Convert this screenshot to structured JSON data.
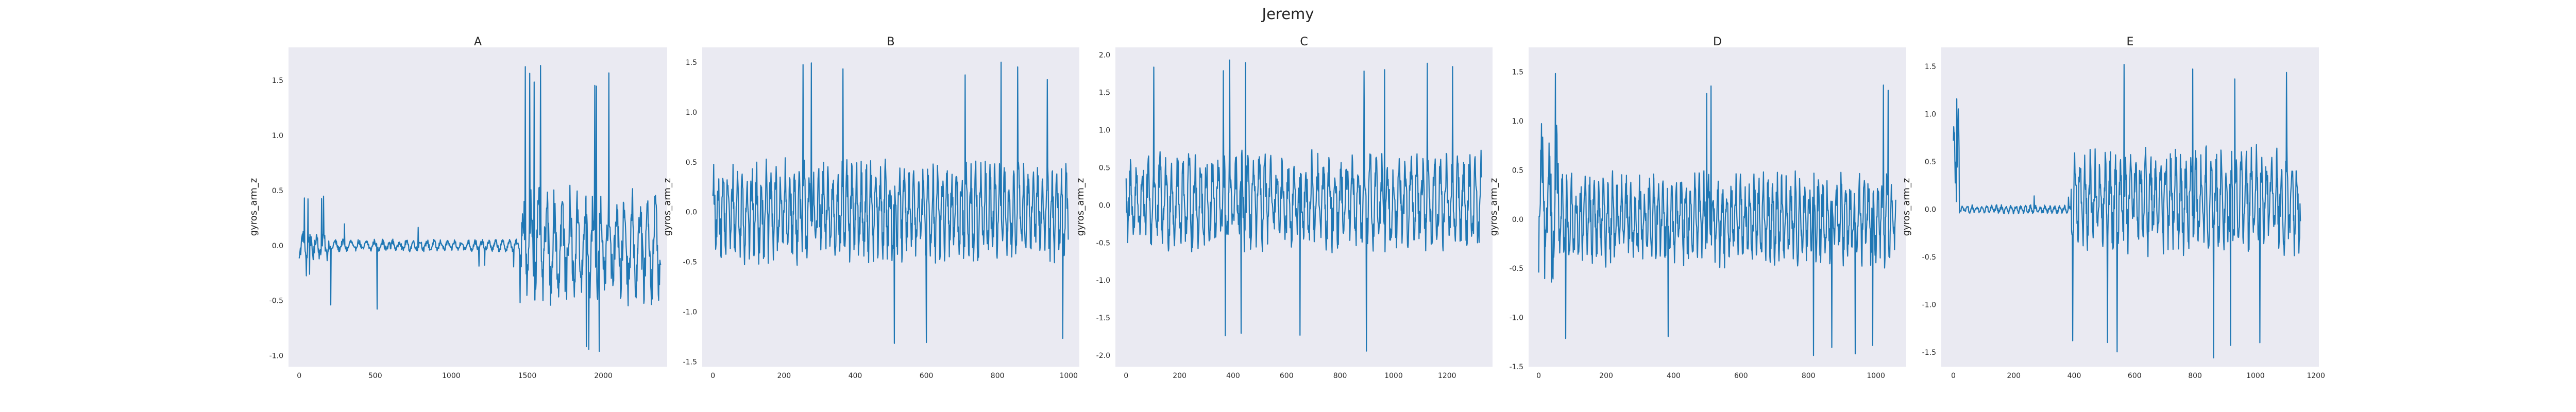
{
  "suptitle": "Jeremy",
  "colors": {
    "background": "#ffffff",
    "panel_face": "#eaeaf2",
    "line": "#1f77b4",
    "text": "#262626"
  },
  "chart_data": [
    {
      "type": "line",
      "title": "A",
      "xlabel": "",
      "ylabel": "gyros_arm_z",
      "x_length": 2380,
      "xlim": [
        -70,
        2420
      ],
      "ylim": [
        -1.1,
        1.8
      ],
      "xticks": [
        0,
        500,
        1000,
        1500,
        2000
      ],
      "yticks": [
        -1.0,
        -0.5,
        0.0,
        0.5,
        1.0,
        1.5
      ],
      "grid": false,
      "segments": [
        {
          "x_start": 0,
          "x_end": 200,
          "mean": 0.0,
          "amp": 0.15,
          "spike_max": 0.45,
          "spike_min": -0.3,
          "spikes": 6
        },
        {
          "x_start": 200,
          "x_end": 600,
          "mean": 0.0,
          "amp": 0.06,
          "spike_max": 0.2,
          "spike_min": -0.6,
          "spikes": 3
        },
        {
          "x_start": 600,
          "x_end": 1450,
          "mean": 0.0,
          "amp": 0.06,
          "spike_max": 0.18,
          "spike_min": -0.2,
          "spikes": 4
        },
        {
          "x_start": 1450,
          "x_end": 2380,
          "mean": 0.0,
          "amp": 0.55,
          "spike_max": 1.65,
          "spike_min": -1.05,
          "spikes": 10
        }
      ]
    },
    {
      "type": "line",
      "title": "B",
      "xlabel": "",
      "ylabel": "gyros_arm_z",
      "x_length": 1000,
      "xlim": [
        -30,
        1030
      ],
      "ylim": [
        -1.55,
        1.65
      ],
      "xticks": [
        0,
        200,
        400,
        600,
        800,
        1000
      ],
      "yticks": [
        -1.5,
        -1.0,
        -0.5,
        0.0,
        0.5,
        1.0,
        1.5
      ],
      "grid": false,
      "segments": [
        {
          "x_start": 0,
          "x_end": 1000,
          "mean": 0.0,
          "amp": 0.55,
          "spike_max": 1.55,
          "spike_min": -1.45,
          "spikes": 10
        }
      ]
    },
    {
      "type": "line",
      "title": "C",
      "xlabel": "",
      "ylabel": "gyros_arm_z",
      "x_length": 1330,
      "xlim": [
        -40,
        1370
      ],
      "ylim": [
        -2.15,
        2.1
      ],
      "xticks": [
        0,
        200,
        400,
        600,
        800,
        1000,
        1200
      ],
      "yticks": [
        -2.0,
        -1.5,
        -1.0,
        -0.5,
        0.0,
        0.5,
        1.0,
        1.5,
        2.0
      ],
      "grid": false,
      "segments": [
        {
          "x_start": 0,
          "x_end": 1330,
          "mean": 0.05,
          "amp": 0.7,
          "spike_max": 1.95,
          "spike_min": -1.95,
          "spikes": 12
        }
      ]
    },
    {
      "type": "line",
      "title": "D",
      "xlabel": "",
      "ylabel": "gyros_arm_z",
      "x_length": 1060,
      "xlim": [
        -30,
        1090
      ],
      "ylim": [
        -1.5,
        1.75
      ],
      "xticks": [
        0,
        200,
        400,
        600,
        800,
        1000
      ],
      "yticks": [
        -1.5,
        -1.0,
        -0.5,
        0.0,
        0.5,
        1.0,
        1.5
      ],
      "grid": false,
      "segments": [
        {
          "x_start": 0,
          "x_end": 60,
          "mean": 0.1,
          "amp": 0.9,
          "spike_max": 1.7,
          "spike_min": -0.75,
          "spikes": 2
        },
        {
          "x_start": 60,
          "x_end": 1060,
          "mean": 0.0,
          "amp": 0.5,
          "spike_max": 1.4,
          "spike_min": -1.4,
          "spikes": 10
        }
      ]
    },
    {
      "type": "line",
      "title": "E",
      "xlabel": "",
      "ylabel": "gyros_arm_z",
      "x_length": 1150,
      "xlim": [
        -40,
        1210
      ],
      "ylim": [
        -1.65,
        1.7
      ],
      "xticks": [
        0,
        200,
        400,
        600,
        800,
        1000,
        1200
      ],
      "yticks": [
        -1.5,
        -1.0,
        -0.5,
        0.0,
        0.5,
        1.0,
        1.5
      ],
      "grid": false,
      "segments": [
        {
          "x_start": 0,
          "x_end": 20,
          "mean": 0.6,
          "amp": 0.6,
          "spike_max": 1.35,
          "spike_min": -0.05,
          "spikes": 1
        },
        {
          "x_start": 20,
          "x_end": 390,
          "mean": 0.0,
          "amp": 0.05,
          "spike_max": 0.15,
          "spike_min": -0.15,
          "spikes": 2
        },
        {
          "x_start": 390,
          "x_end": 1150,
          "mean": 0.1,
          "amp": 0.6,
          "spike_max": 1.6,
          "spike_min": -1.6,
          "spikes": 10
        }
      ]
    }
  ]
}
